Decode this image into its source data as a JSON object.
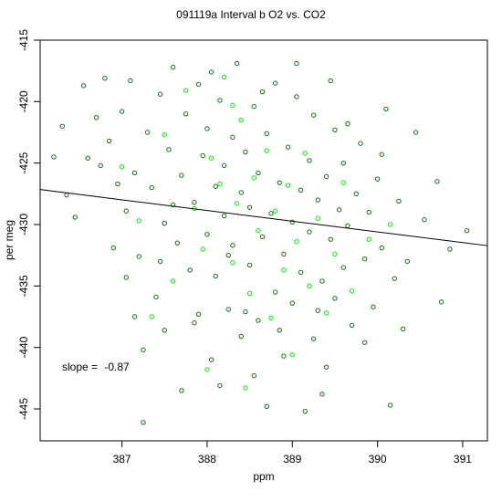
{
  "chart_data": {
    "type": "scatter",
    "title": "091119a   Interval b O2 vs. CO2",
    "xlabel": "ppm",
    "ylabel": "per meg",
    "xlim": [
      386.04,
      391.29
    ],
    "ylim": [
      -447.6,
      -415.0
    ],
    "x_ticks": [
      387,
      388,
      389,
      390,
      391
    ],
    "y_ticks": [
      -415,
      -420,
      -425,
      -430,
      -435,
      -440,
      -445
    ],
    "x_tick_labels": [
      "387",
      "388",
      "389",
      "390",
      "391"
    ],
    "y_tick_labels": [
      "-415",
      "-420",
      "-425",
      "-430",
      "-435",
      "-440",
      "-445"
    ],
    "annotation": {
      "label": "slope = ",
      "value": "-0.87"
    },
    "fit_line": {
      "slope": -0.87,
      "intercept": -91.3
    },
    "colors": {
      "dark_series": "#1a6b1a",
      "light_series": "#00ee00",
      "fit_line": "#000000",
      "frame": "#000000"
    },
    "series": [
      {
        "color": "#1a6b1a",
        "marker": "open-circle",
        "points": [
          [
            386.2,
            -424.5
          ],
          [
            386.3,
            -422.0
          ],
          [
            386.35,
            -427.6
          ],
          [
            386.45,
            -429.4
          ],
          [
            386.55,
            -418.7
          ],
          [
            386.6,
            -424.6
          ],
          [
            386.7,
            -421.3
          ],
          [
            386.75,
            -425.2
          ],
          [
            386.8,
            -418.1
          ],
          [
            386.85,
            -423.2
          ],
          [
            386.9,
            -431.9
          ],
          [
            386.95,
            -426.7
          ],
          [
            387.0,
            -420.8
          ],
          [
            387.05,
            -428.9
          ],
          [
            387.05,
            -434.3
          ],
          [
            387.1,
            -418.3
          ],
          [
            387.15,
            -425.8
          ],
          [
            387.2,
            -432.6
          ],
          [
            387.25,
            -446.1
          ],
          [
            387.25,
            -440.2
          ],
          [
            387.3,
            -422.5
          ],
          [
            387.35,
            -427.0
          ],
          [
            387.4,
            -435.9
          ],
          [
            387.45,
            -419.4
          ],
          [
            387.5,
            -429.9
          ],
          [
            387.5,
            -438.6
          ],
          [
            387.55,
            -423.9
          ],
          [
            387.6,
            -417.2
          ],
          [
            387.65,
            -431.5
          ],
          [
            387.7,
            -426.0
          ],
          [
            387.7,
            -443.5
          ],
          [
            387.75,
            -421.0
          ],
          [
            387.8,
            -433.7
          ],
          [
            387.85,
            -428.2
          ],
          [
            387.9,
            -418.6
          ],
          [
            387.9,
            -437.3
          ],
          [
            387.95,
            -424.4
          ],
          [
            388.0,
            -430.8
          ],
          [
            388.0,
            -422.2
          ],
          [
            388.05,
            -441.0
          ],
          [
            388.1,
            -426.9
          ],
          [
            388.1,
            -434.2
          ],
          [
            388.15,
            -419.9
          ],
          [
            388.2,
            -429.3
          ],
          [
            388.2,
            -425.2
          ],
          [
            388.25,
            -436.9
          ],
          [
            388.3,
            -422.9
          ],
          [
            388.3,
            -431.7
          ],
          [
            388.35,
            -416.9
          ],
          [
            388.4,
            -427.4
          ],
          [
            388.4,
            -439.1
          ],
          [
            388.45,
            -424.1
          ],
          [
            388.5,
            -433.3
          ],
          [
            388.5,
            -428.6
          ],
          [
            388.55,
            -420.4
          ],
          [
            388.6,
            -437.8
          ],
          [
            388.6,
            -425.8
          ],
          [
            388.65,
            -431.0
          ],
          [
            388.7,
            -444.8
          ],
          [
            388.7,
            -422.6
          ],
          [
            388.75,
            -429.1
          ],
          [
            388.8,
            -435.5
          ],
          [
            388.8,
            -418.5
          ],
          [
            388.85,
            -426.6
          ],
          [
            388.9,
            -432.4
          ],
          [
            388.9,
            -440.7
          ],
          [
            388.95,
            -423.7
          ],
          [
            389.0,
            -429.8
          ],
          [
            389.0,
            -436.4
          ],
          [
            389.05,
            -419.6
          ],
          [
            389.1,
            -427.2
          ],
          [
            389.1,
            -433.9
          ],
          [
            389.15,
            -445.2
          ],
          [
            389.2,
            -424.8
          ],
          [
            389.2,
            -430.6
          ],
          [
            389.25,
            -421.1
          ],
          [
            389.3,
            -437.0
          ],
          [
            389.3,
            -428.0
          ],
          [
            389.35,
            -434.6
          ],
          [
            389.4,
            -426.1
          ],
          [
            389.4,
            -441.6
          ],
          [
            389.45,
            -431.2
          ],
          [
            389.5,
            -422.3
          ],
          [
            389.5,
            -436.0
          ],
          [
            389.55,
            -428.8
          ],
          [
            389.6,
            -425.0
          ],
          [
            389.6,
            -433.5
          ],
          [
            389.65,
            -430.1
          ],
          [
            389.7,
            -438.2
          ],
          [
            389.75,
            -427.5
          ],
          [
            389.8,
            -423.4
          ],
          [
            389.85,
            -432.8
          ],
          [
            389.9,
            -429.0
          ],
          [
            389.95,
            -436.7
          ],
          [
            390.0,
            -426.3
          ],
          [
            390.05,
            -431.9
          ],
          [
            390.1,
            -420.6
          ],
          [
            390.15,
            -444.7
          ],
          [
            390.2,
            -434.4
          ],
          [
            390.25,
            -428.1
          ],
          [
            390.3,
            -438.5
          ],
          [
            390.35,
            -433.0
          ],
          [
            390.45,
            -422.5
          ],
          [
            390.55,
            -429.6
          ],
          [
            390.7,
            -426.5
          ],
          [
            390.75,
            -436.3
          ],
          [
            390.85,
            -432.0
          ],
          [
            391.05,
            -430.5
          ],
          [
            387.15,
            -437.5
          ],
          [
            387.45,
            -433.0
          ],
          [
            387.6,
            -428.4
          ],
          [
            387.85,
            -438.0
          ],
          [
            388.05,
            -417.6
          ],
          [
            388.25,
            -432.5
          ],
          [
            388.45,
            -437.1
          ],
          [
            388.65,
            -419.2
          ],
          [
            388.85,
            -438.6
          ],
          [
            389.05,
            -416.9
          ],
          [
            389.25,
            -439.3
          ],
          [
            389.45,
            -418.3
          ],
          [
            389.65,
            -421.8
          ],
          [
            389.85,
            -439.6
          ],
          [
            390.05,
            -424.3
          ],
          [
            388.55,
            -442.3
          ],
          [
            388.15,
            -443.1
          ],
          [
            389.35,
            -443.8
          ]
        ]
      },
      {
        "color": "#00ee00",
        "marker": "open-circle",
        "points": [
          [
            387.0,
            -425.3
          ],
          [
            387.2,
            -429.7
          ],
          [
            387.35,
            -437.5
          ],
          [
            387.5,
            -422.7
          ],
          [
            387.6,
            -434.6
          ],
          [
            387.75,
            -419.1
          ],
          [
            387.85,
            -428.7
          ],
          [
            387.95,
            -432.0
          ],
          [
            388.0,
            -441.8
          ],
          [
            388.05,
            -424.6
          ],
          [
            388.15,
            -426.7
          ],
          [
            388.2,
            -418.0
          ],
          [
            388.3,
            -433.1
          ],
          [
            388.35,
            -428.3
          ],
          [
            388.4,
            -421.5
          ],
          [
            388.5,
            -435.6
          ],
          [
            388.55,
            -426.2
          ],
          [
            388.6,
            -430.5
          ],
          [
            388.7,
            -424.0
          ],
          [
            388.75,
            -437.6
          ],
          [
            388.8,
            -428.9
          ],
          [
            388.9,
            -433.7
          ],
          [
            388.95,
            -426.8
          ],
          [
            389.0,
            -440.6
          ],
          [
            389.05,
            -431.4
          ],
          [
            389.15,
            -424.2
          ],
          [
            389.2,
            -435.0
          ],
          [
            389.3,
            -429.5
          ],
          [
            389.4,
            -437.2
          ],
          [
            389.5,
            -432.4
          ],
          [
            389.6,
            -426.6
          ],
          [
            389.7,
            -435.4
          ],
          [
            389.9,
            -431.2
          ],
          [
            390.15,
            -430.0
          ],
          [
            388.45,
            -443.3
          ],
          [
            388.3,
            -420.3
          ]
        ]
      }
    ]
  }
}
